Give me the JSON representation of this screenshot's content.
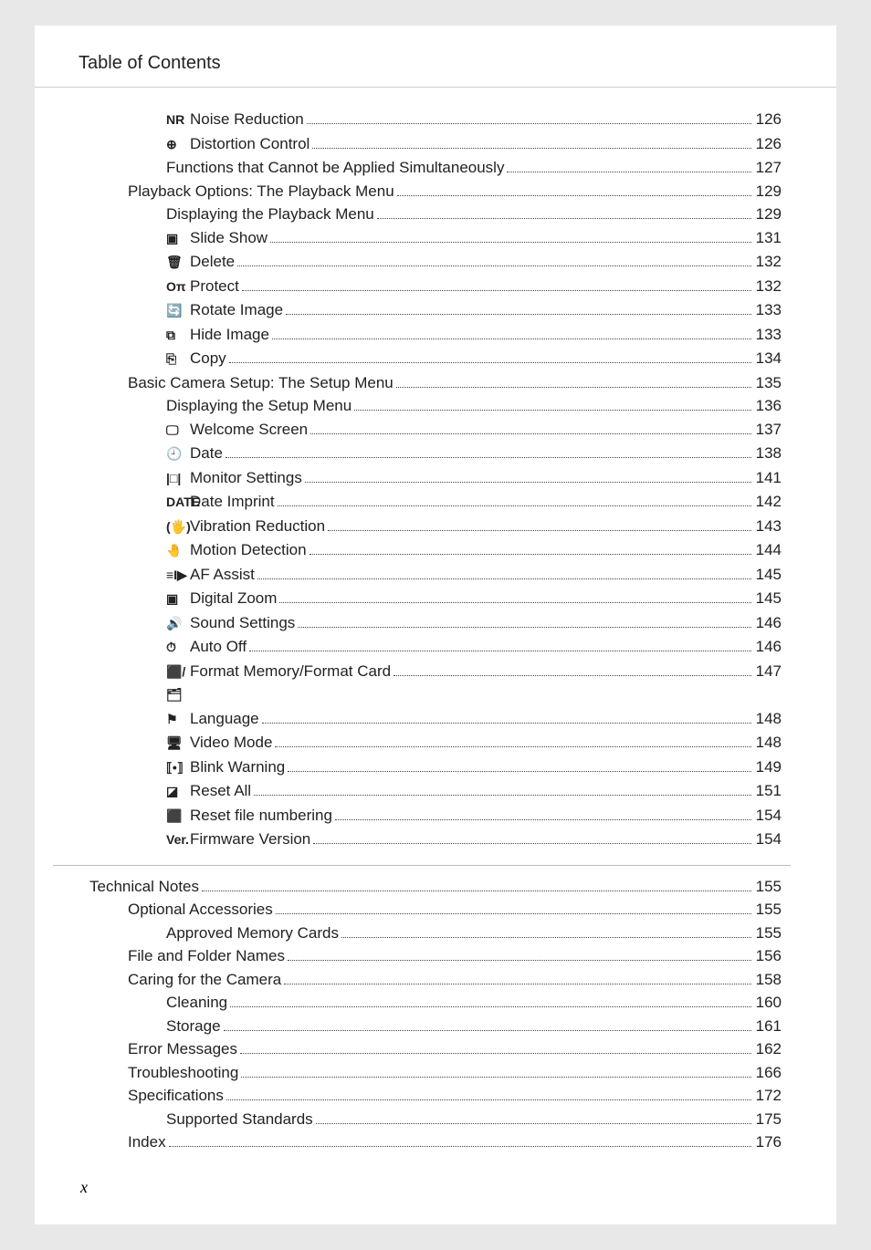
{
  "header_title": "Table of Contents",
  "page_number": "x",
  "entries": [
    {
      "level": 2,
      "icon": "NR",
      "label": "Noise Reduction",
      "page": "126"
    },
    {
      "level": 2,
      "icon": "⊕",
      "label": "Distortion Control",
      "page": "126"
    },
    {
      "level": 2,
      "icon": "",
      "label": "Functions that Cannot be Applied Simultaneously",
      "page": "127"
    },
    {
      "level": 1,
      "icon": "",
      "label": "Playback Options: The Playback Menu ",
      "page": " 129"
    },
    {
      "level": 2,
      "icon": "",
      "label": "Displaying the Playback Menu",
      "page": "129"
    },
    {
      "level": 2,
      "icon": "▣",
      "label": "Slide Show",
      "page": "131"
    },
    {
      "level": 2,
      "icon": "🗑",
      "label": "Delete",
      "page": "132"
    },
    {
      "level": 2,
      "icon": "Oπ",
      "label": "Protect",
      "page": "132"
    },
    {
      "level": 2,
      "icon": "🔄",
      "label": "Rotate Image",
      "page": "133"
    },
    {
      "level": 2,
      "icon": "⧉",
      "label": "Hide Image",
      "page": "133"
    },
    {
      "level": 2,
      "icon": "⎘",
      "label": "Copy",
      "page": "134"
    },
    {
      "level": 1,
      "icon": "",
      "label": "Basic Camera Setup: The Setup Menu",
      "page": " 135"
    },
    {
      "level": 2,
      "icon": "",
      "label": "Displaying the Setup Menu",
      "page": "136"
    },
    {
      "level": 2,
      "icon": "🖵",
      "label": "Welcome Screen",
      "page": "137"
    },
    {
      "level": 2,
      "icon": "🕘",
      "label": "Date",
      "page": "138"
    },
    {
      "level": 2,
      "icon": "|□|",
      "label": "Monitor Settings",
      "page": "141"
    },
    {
      "level": 2,
      "icon": "DATE",
      "label": "Date Imprint",
      "page": "142"
    },
    {
      "level": 2,
      "icon": "(🖐)",
      "label": "Vibration Reduction",
      "page": "143"
    },
    {
      "level": 2,
      "icon": "🤚",
      "label": "Motion Detection",
      "page": "144"
    },
    {
      "level": 2,
      "icon": "≡I▶",
      "label": "AF Assist",
      "page": "145"
    },
    {
      "level": 2,
      "icon": "▣",
      "label": "Digital Zoom",
      "page": "145"
    },
    {
      "level": 2,
      "icon": "🔊",
      "label": "Sound Settings",
      "page": "146"
    },
    {
      "level": 2,
      "icon": "⏱",
      "label": "Auto Off",
      "page": "146"
    },
    {
      "level": 2,
      "icon": "⬛/🗂",
      "label": "Format Memory/Format Card",
      "page": "147"
    },
    {
      "level": 2,
      "icon": "⚑",
      "label": "Language",
      "page": "148"
    },
    {
      "level": 2,
      "icon": "🖥",
      "label": "Video Mode",
      "page": "148"
    },
    {
      "level": 2,
      "icon": "⟦•⟧",
      "label": "Blink Warning",
      "page": "149"
    },
    {
      "level": 2,
      "icon": "◪",
      "label": "Reset All",
      "page": "151"
    },
    {
      "level": 2,
      "icon": "⬛",
      "label": "Reset file numbering",
      "page": "154"
    },
    {
      "level": 2,
      "icon": "Ver.",
      "label": "Firmware Version",
      "page": "154"
    }
  ],
  "entries2": [
    {
      "level": 0,
      "icon": "",
      "label": "Technical Notes",
      "page": "155"
    },
    {
      "level": 1,
      "icon": "",
      "label": "Optional Accessories ",
      "page": " 155"
    },
    {
      "level": 2,
      "icon": "",
      "label": "Approved Memory Cards",
      "page": "155"
    },
    {
      "level": 1,
      "icon": "",
      "label": "File and Folder Names",
      "page": " 156"
    },
    {
      "level": 1,
      "icon": "",
      "label": "Caring for the Camera ",
      "page": " 158"
    },
    {
      "level": 2,
      "icon": "",
      "label": "Cleaning",
      "page": "160"
    },
    {
      "level": 2,
      "icon": "",
      "label": "Storage",
      "page": "161"
    },
    {
      "level": 1,
      "icon": "",
      "label": "Error Messages",
      "page": " 162"
    },
    {
      "level": 1,
      "icon": "",
      "label": "Troubleshooting",
      "page": " 166"
    },
    {
      "level": 1,
      "icon": "",
      "label": "Specifications ",
      "page": " 172"
    },
    {
      "level": 2,
      "icon": "",
      "label": "Supported Standards",
      "page": "175"
    },
    {
      "level": 1,
      "icon": "",
      "label": "Index",
      "page": " 176"
    }
  ]
}
